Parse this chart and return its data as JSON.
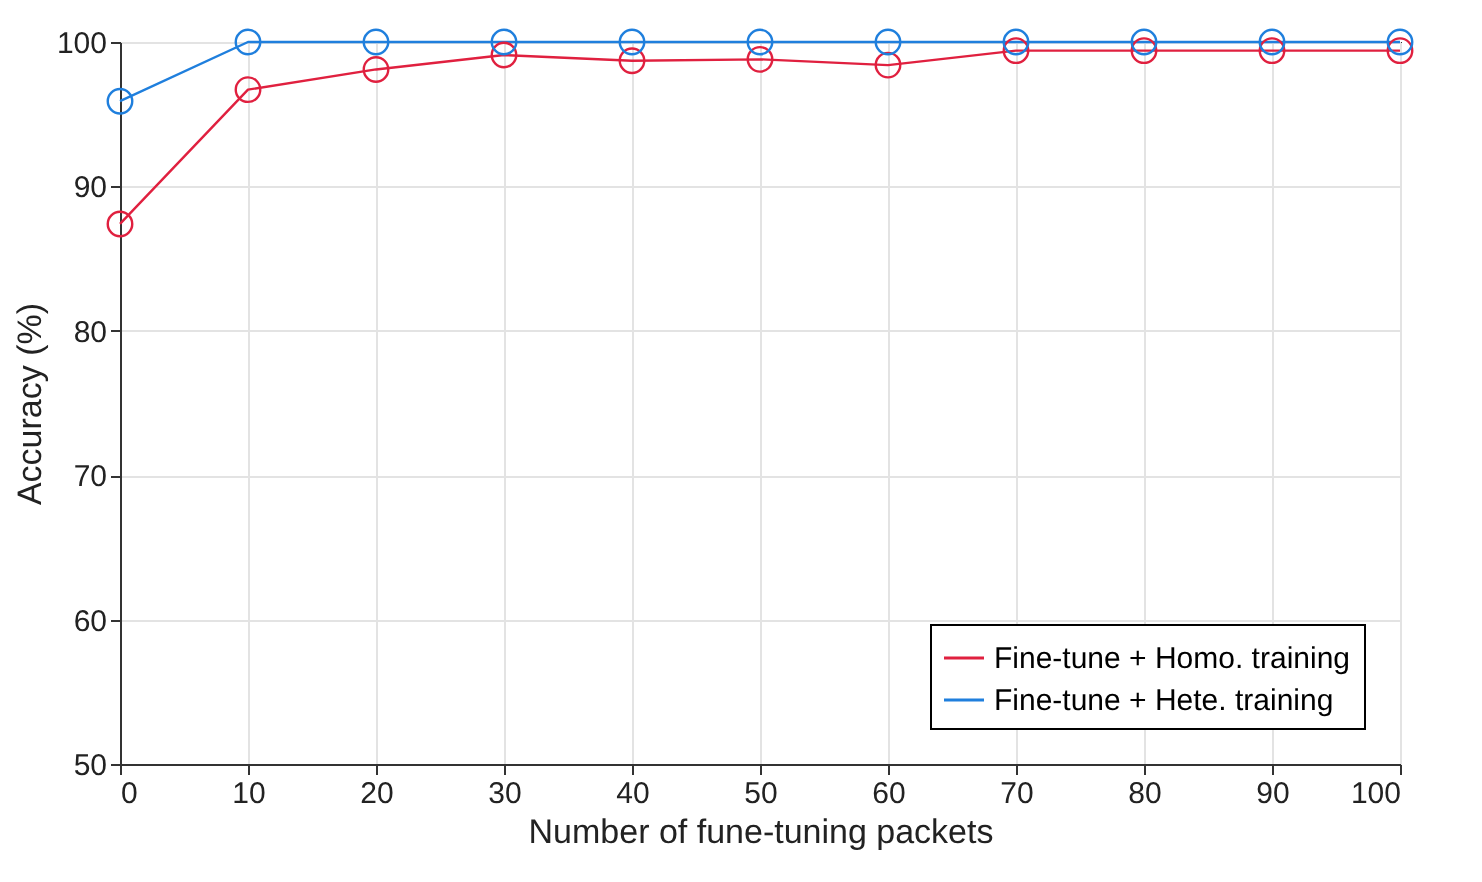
{
  "chart_data": {
    "type": "line",
    "xlabel": "Number of fune-tuning packets",
    "ylabel": "Accuracy (%)",
    "x": [
      0,
      10,
      20,
      30,
      40,
      50,
      60,
      70,
      80,
      90,
      100
    ],
    "series": [
      {
        "name": "Fine-tune + Homo. training",
        "color": "#e0203f",
        "values": [
          87.4,
          96.7,
          98.1,
          99.1,
          98.7,
          98.8,
          98.4,
          99.4,
          99.4,
          99.4,
          99.4
        ]
      },
      {
        "name": "Fine-tune + Hete. training",
        "color": "#1f7fdd",
        "values": [
          95.9,
          100,
          100,
          100,
          100,
          100,
          100,
          100,
          100,
          100,
          100
        ]
      }
    ],
    "xlim": [
      0,
      100
    ],
    "xticks": [
      0,
      10,
      20,
      30,
      40,
      50,
      60,
      70,
      80,
      90,
      100
    ],
    "ylim": [
      50,
      100
    ],
    "yticks": [
      50,
      60,
      70,
      80,
      90,
      100
    ],
    "grid": true,
    "legend": "bottom right",
    "marker": "circle",
    "line_style": "solid"
  }
}
